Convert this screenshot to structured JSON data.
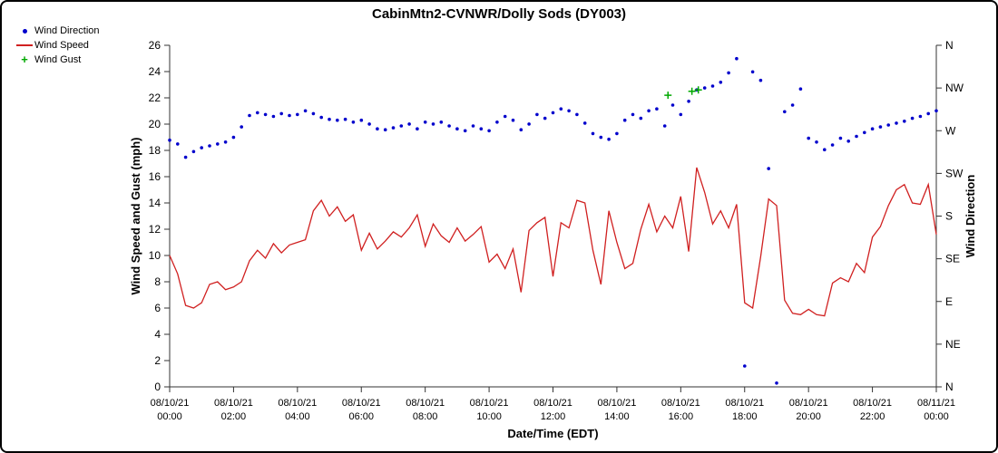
{
  "title": "CabinMtn2-CVNWR/Dolly Sods (DY003)",
  "legend": [
    {
      "label": "Wind Direction",
      "marker": "dot",
      "color": "#0000cc"
    },
    {
      "label": "Wind Speed",
      "marker": "line",
      "color": "#d02020"
    },
    {
      "label": "Wind Gust",
      "marker": "plus",
      "color": "#00a800"
    }
  ],
  "axes": {
    "x": {
      "label": "Date/Time (EDT)",
      "min_hours": 0,
      "max_hours": 24,
      "ticks": [
        {
          "hours": 0,
          "date": "08/10/21",
          "time": "00:00"
        },
        {
          "hours": 2,
          "date": "08/10/21",
          "time": "02:00"
        },
        {
          "hours": 4,
          "date": "08/10/21",
          "time": "04:00"
        },
        {
          "hours": 6,
          "date": "08/10/21",
          "time": "06:00"
        },
        {
          "hours": 8,
          "date": "08/10/21",
          "time": "08:00"
        },
        {
          "hours": 10,
          "date": "08/10/21",
          "time": "10:00"
        },
        {
          "hours": 12,
          "date": "08/10/21",
          "time": "12:00"
        },
        {
          "hours": 14,
          "date": "08/10/21",
          "time": "14:00"
        },
        {
          "hours": 16,
          "date": "08/10/21",
          "time": "16:00"
        },
        {
          "hours": 18,
          "date": "08/10/21",
          "time": "18:00"
        },
        {
          "hours": 20,
          "date": "08/10/21",
          "time": "20:00"
        },
        {
          "hours": 22,
          "date": "08/10/21",
          "time": "22:00"
        },
        {
          "hours": 24,
          "date": "08/11/21",
          "time": "00:00"
        }
      ]
    },
    "y_left": {
      "label": "Wind Speed and Gust (mph)",
      "min": 0,
      "max": 26,
      "tick_step": 2
    },
    "y_right": {
      "label": "Wind Direction",
      "min_deg": 0,
      "max_deg": 360,
      "tick_step_deg": 45,
      "tick_labels_bottom_to_top": [
        "N",
        "NE",
        "E",
        "SE",
        "S",
        "SW",
        "W",
        "NW",
        "N"
      ]
    }
  },
  "chart_data": {
    "type": "mixed",
    "title": "CabinMtn2-CVNWR/Dolly Sods (DY003)",
    "xlabel": "Date/Time (EDT)",
    "ylabel_left": "Wind Speed and Gust (mph)",
    "ylabel_right": "Wind Direction",
    "ylim_left": [
      0,
      26
    ],
    "ylim_right_deg": [
      0,
      360
    ],
    "x_hours": {
      "start": 0,
      "step": 0.25,
      "count": 97
    },
    "series": [
      {
        "name": "Wind Speed",
        "type": "line",
        "color": "#d02020",
        "units": "mph",
        "values": [
          10.0,
          8.6,
          6.2,
          6.0,
          6.4,
          7.8,
          8.0,
          7.4,
          7.6,
          8.0,
          9.6,
          10.4,
          9.8,
          10.9,
          10.2,
          10.8,
          11.0,
          11.2,
          13.4,
          14.2,
          13.0,
          13.7,
          12.6,
          13.1,
          10.4,
          11.7,
          10.5,
          11.1,
          11.8,
          11.4,
          12.1,
          13.1,
          10.7,
          12.4,
          11.5,
          11.0,
          12.1,
          11.1,
          11.6,
          12.2,
          9.5,
          10.1,
          9.0,
          10.5,
          7.2,
          11.9,
          12.5,
          12.9,
          8.4,
          12.5,
          12.1,
          14.2,
          14.0,
          10.4,
          7.8,
          13.4,
          11.0,
          9.0,
          9.4,
          12.0,
          13.9,
          11.8,
          13.0,
          12.1,
          14.5,
          10.3,
          16.7,
          14.8,
          12.4,
          13.4,
          12.1,
          13.9,
          6.4,
          6.0,
          9.9,
          14.3,
          13.8,
          6.6,
          5.6,
          5.5,
          5.9,
          5.5,
          5.4,
          7.9,
          8.3,
          8.0,
          9.4,
          8.7,
          11.4,
          12.2,
          13.8,
          15.0,
          15.4,
          14.0,
          13.9,
          15.4,
          11.6
        ]
      },
      {
        "name": "Wind Direction",
        "type": "scatter",
        "marker": "dot",
        "color": "#0000cc",
        "units": "degrees",
        "values": [
          260,
          256,
          242,
          248,
          252,
          254,
          256,
          258,
          263,
          274,
          286,
          289,
          287,
          285,
          288,
          286,
          287,
          291,
          288,
          284,
          282,
          281,
          282,
          279,
          281,
          277,
          272,
          271,
          273,
          275,
          277,
          272,
          279,
          277,
          279,
          275,
          272,
          270,
          275,
          272,
          270,
          279,
          285,
          281,
          271,
          277,
          287,
          283,
          289,
          293,
          291,
          287,
          278,
          267,
          263,
          261,
          267,
          281,
          287,
          283,
          291,
          293,
          275,
          297,
          287,
          301,
          313,
          315,
          317,
          321,
          331,
          346,
          22,
          332,
          323,
          230,
          4,
          290,
          297,
          314,
          262,
          258,
          250,
          255,
          262,
          259,
          264,
          268,
          272,
          274,
          276,
          278,
          280,
          283,
          285,
          288,
          291
        ]
      },
      {
        "name": "Wind Gust",
        "type": "scatter",
        "marker": "plus",
        "color": "#00a800",
        "units": "mph",
        "points": [
          {
            "t": 15.6,
            "v": 22.2
          },
          {
            "t": 16.35,
            "v": 22.5
          },
          {
            "t": 16.55,
            "v": 22.6
          }
        ]
      }
    ]
  }
}
